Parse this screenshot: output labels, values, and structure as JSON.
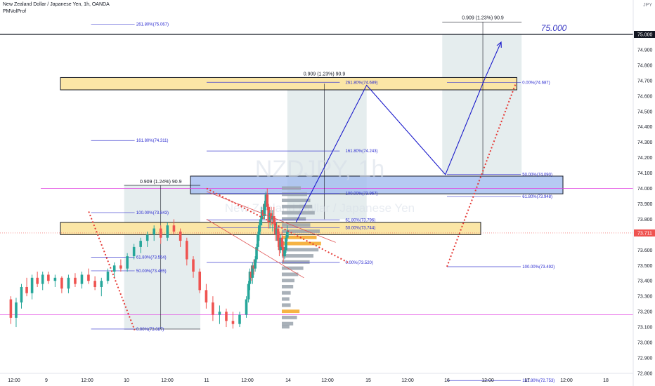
{
  "header": {
    "title": "New Zealand Dollar / Japanese Yen, 1h, OANDA",
    "indicator": "PMVolProf"
  },
  "watermark": {
    "symbol": "NZDJPY, 1h",
    "name": "New Zealand Dollar / Japanese Yen"
  },
  "currency_label": "JPY",
  "target_label": "75.000",
  "current_price": "73.711",
  "level_price": "75.000",
  "measure_labels": [
    {
      "text": "0.909 (1.24%) 90.9",
      "x": 0.0,
      "price": 74.02
    },
    {
      "text": "0.909 (1.23%) 90.9",
      "x": 0.0,
      "price": 74.72
    },
    {
      "text": "0.909 (1.23%) 90.9",
      "x": 0.0,
      "price": 75.085
    }
  ],
  "fib_labels": [
    {
      "text": "261.80%(75.067)",
      "price": 75.067,
      "x": 10.3
    },
    {
      "text": "161.80%(74.311)",
      "price": 74.311,
      "x": 10.3
    },
    {
      "text": "100.00%(73.843)",
      "price": 73.843,
      "x": 10.3
    },
    {
      "text": "61.80%(73.554)",
      "price": 73.554,
      "x": 10.3
    },
    {
      "text": "50.00%(73.465)",
      "price": 73.465,
      "x": 10.3
    },
    {
      "text": "0.00%(73.087)",
      "price": 73.087,
      "x": 10.3
    },
    {
      "text": "261.80%(74.689)",
      "price": 74.689,
      "x": 14.6
    },
    {
      "text": "161.80%(74.243)",
      "price": 74.243,
      "x": 14.6
    },
    {
      "text": "100.00%(73.967)",
      "price": 73.967,
      "x": 14.6
    },
    {
      "text": "61.80%(73.796)",
      "price": 73.796,
      "x": 14.6
    },
    {
      "text": "50.00%(73.744)",
      "price": 73.744,
      "x": 14.6
    },
    {
      "text": "0.00%(73.520)",
      "price": 73.52,
      "x": 14.6
    },
    {
      "text": "0.00%(74.687)",
      "price": 74.687,
      "x": 16.55
    },
    {
      "text": "50.00%(74.090)",
      "price": 74.09,
      "x": 16.55
    },
    {
      "text": "61.80%(73.948)",
      "price": 73.948,
      "x": 16.55
    },
    {
      "text": "100.00%(73.492)",
      "price": 73.492,
      "x": 16.55
    },
    {
      "text": "161.80%(72.753)",
      "price": 72.753,
      "x": 16.55
    }
  ],
  "chart_data": {
    "type": "candlestick",
    "x_ticks": [
      "12:00",
      "9",
      "12:00",
      "10",
      "12:00",
      "11",
      "12:00",
      "14",
      "12:00",
      "15",
      "12:00",
      "16",
      "12:00",
      "17",
      "12:00",
      "18"
    ],
    "x_tick_days": [
      8.5,
      9.0,
      9.5,
      10.0,
      10.5,
      11.0,
      11.5,
      14.0,
      14.5,
      15.0,
      15.5,
      16.0,
      16.5,
      17.0,
      17.5,
      18.0
    ],
    "y_ticks": [
      "75.000",
      "74.900",
      "74.800",
      "74.700",
      "74.600",
      "74.500",
      "74.400",
      "74.300",
      "74.200",
      "74.100",
      "74.000",
      "73.900",
      "73.800",
      "73.700",
      "73.600",
      "73.500",
      "73.400",
      "73.300",
      "73.200",
      "73.100",
      "73.000",
      "72.900",
      "72.800"
    ],
    "ylim": [
      72.745,
      75.135
    ],
    "colors": {
      "up": "#26a69a",
      "down": "#ef5350",
      "zone_yellow": "#fbe6a6",
      "zone_blue": "#9db8ef",
      "projection": "#dfe9ea",
      "arrow": "#1a1acb",
      "fib": "#4040d0",
      "magenta": "#e040e0"
    },
    "candles": [
      [
        73.28,
        73.3,
        73.12,
        73.16
      ],
      [
        73.16,
        73.29,
        73.1,
        73.26
      ],
      [
        73.26,
        73.38,
        73.22,
        73.36
      ],
      [
        73.36,
        73.42,
        73.3,
        73.32
      ],
      [
        73.32,
        73.44,
        73.28,
        73.42
      ],
      [
        73.42,
        73.46,
        73.36,
        73.38
      ],
      [
        73.38,
        73.46,
        73.34,
        73.44
      ],
      [
        73.44,
        73.46,
        73.38,
        73.4
      ],
      [
        73.4,
        73.44,
        73.36,
        73.42
      ],
      [
        73.42,
        73.43,
        73.32,
        73.35
      ],
      [
        73.35,
        73.44,
        73.32,
        73.42
      ],
      [
        73.42,
        73.45,
        73.36,
        73.38
      ],
      [
        73.38,
        73.46,
        73.35,
        73.44
      ],
      [
        73.44,
        73.48,
        73.38,
        73.4
      ],
      [
        73.4,
        73.43,
        73.34,
        73.36
      ],
      [
        73.36,
        73.42,
        73.3,
        73.4
      ],
      [
        73.4,
        73.48,
        73.38,
        73.46
      ],
      [
        73.46,
        73.52,
        73.42,
        73.5
      ],
      [
        73.5,
        73.54,
        73.46,
        73.48
      ],
      [
        73.48,
        73.58,
        73.46,
        73.56
      ],
      [
        73.56,
        73.64,
        73.54,
        73.62
      ],
      [
        73.62,
        73.68,
        73.58,
        73.66
      ],
      [
        73.66,
        73.72,
        73.62,
        73.7
      ],
      [
        73.7,
        73.76,
        73.66,
        73.74
      ],
      [
        73.74,
        73.76,
        73.64,
        73.68
      ],
      [
        73.68,
        73.78,
        73.66,
        73.76
      ],
      [
        73.76,
        73.8,
        73.7,
        73.72
      ],
      [
        73.72,
        73.74,
        73.62,
        73.66
      ],
      [
        73.66,
        73.68,
        73.5,
        73.54
      ],
      [
        73.54,
        73.56,
        73.42,
        73.46
      ],
      [
        73.46,
        73.48,
        73.32,
        73.34
      ],
      [
        73.34,
        73.38,
        73.22,
        73.26
      ],
      [
        73.26,
        73.3,
        73.14,
        73.18
      ],
      [
        73.18,
        73.24,
        73.12,
        73.2
      ],
      [
        73.2,
        73.22,
        73.1,
        73.14
      ],
      [
        73.14,
        73.2,
        73.09,
        73.12
      ],
      [
        73.12,
        73.2,
        73.1,
        73.18
      ],
      [
        73.18,
        73.3,
        73.16,
        73.28
      ],
      [
        73.28,
        73.4,
        73.26,
        73.38
      ],
      [
        73.38,
        73.48,
        73.34,
        73.46
      ],
      [
        73.46,
        73.5,
        73.4,
        73.42
      ],
      [
        73.42,
        73.52,
        73.38,
        73.5
      ],
      [
        73.5,
        73.54,
        73.44,
        73.48
      ],
      [
        73.48,
        73.56,
        73.46,
        73.54
      ],
      [
        73.54,
        73.64,
        73.52,
        73.62
      ],
      [
        73.62,
        73.72,
        73.6,
        73.7
      ],
      [
        73.7,
        73.78,
        73.66,
        73.76
      ],
      [
        73.76,
        73.82,
        73.72,
        73.8
      ],
      [
        73.8,
        73.88,
        73.76,
        73.86
      ],
      [
        73.86,
        73.9,
        73.8,
        73.82
      ],
      [
        73.82,
        73.92,
        73.8,
        73.9
      ],
      [
        73.9,
        73.98,
        73.86,
        73.96
      ],
      [
        73.96,
        74.0,
        73.86,
        73.88
      ],
      [
        73.88,
        73.9,
        73.74,
        73.78
      ],
      [
        73.78,
        73.86,
        73.74,
        73.84
      ],
      [
        73.84,
        73.88,
        73.76,
        73.8
      ],
      [
        73.8,
        73.86,
        73.72,
        73.82
      ],
      [
        73.82,
        73.88,
        73.76,
        73.78
      ],
      [
        73.78,
        73.8,
        73.66,
        73.7
      ],
      [
        73.7,
        73.78,
        73.66,
        73.74
      ],
      [
        73.74,
        73.76,
        73.62,
        73.66
      ],
      [
        73.66,
        73.72,
        73.56,
        73.6
      ],
      [
        73.6,
        73.7,
        73.58,
        73.68
      ],
      [
        73.68,
        73.72,
        73.6,
        73.62
      ],
      [
        73.62,
        73.66,
        73.52,
        73.56
      ],
      [
        73.56,
        73.62,
        73.54,
        73.6
      ],
      [
        73.6,
        73.7,
        73.58,
        73.68
      ],
      [
        73.68,
        73.76,
        73.66,
        73.72
      ]
    ]
  }
}
